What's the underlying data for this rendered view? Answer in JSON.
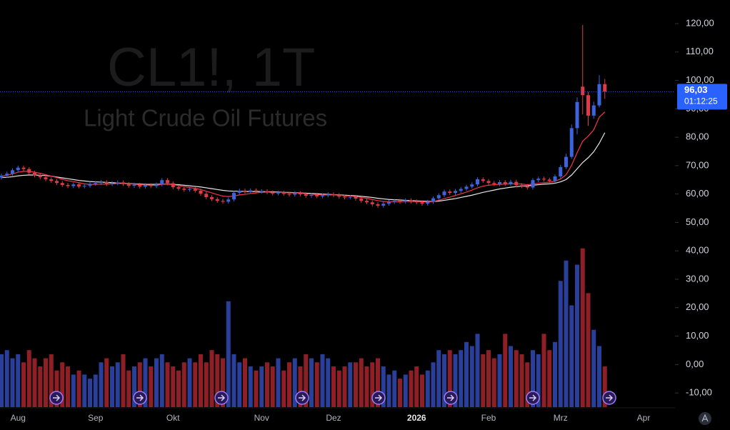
{
  "chart_data": {
    "type": "candlestick",
    "title": "CL1!, 1T",
    "subtitle": "Light Crude Oil Futures",
    "last_label": "96,03",
    "countdown": "01:12:25",
    "up_color": "#3d63dd",
    "down_color": "#e03a45",
    "volume_up_color": "#2a3f99",
    "volume_down_color": "#8f1f27",
    "ylim": [
      -15,
      128.3
    ],
    "yticks": [
      {
        "value": -10,
        "label": "-10,00"
      },
      {
        "value": 0,
        "label": "0,00"
      },
      {
        "value": 10,
        "label": "10,00"
      },
      {
        "value": 20,
        "label": "20,00"
      },
      {
        "value": 30,
        "label": "30,00"
      },
      {
        "value": 40,
        "label": "40,00"
      },
      {
        "value": 50,
        "label": "50,00"
      },
      {
        "value": 60,
        "label": "60,00"
      },
      {
        "value": 70,
        "label": "70,00"
      },
      {
        "value": 80,
        "label": "80,00"
      },
      {
        "value": 90,
        "label": "90,00"
      },
      {
        "value": 100,
        "label": "100,00"
      },
      {
        "value": 110,
        "label": "110,00"
      },
      {
        "value": 120,
        "label": "120,00"
      }
    ],
    "y2lim": [
      0,
      100
    ],
    "categories": [
      null,
      null,
      null,
      "Aug",
      null,
      null,
      null,
      null,
      null,
      null,
      null,
      null,
      null,
      null,
      null,
      null,
      null,
      "Sep",
      null,
      null,
      null,
      null,
      null,
      null,
      null,
      null,
      null,
      null,
      null,
      null,
      null,
      "Okt",
      null,
      null,
      null,
      null,
      null,
      null,
      null,
      null,
      null,
      null,
      null,
      null,
      null,
      null,
      null,
      "Nov",
      null,
      null,
      null,
      null,
      null,
      null,
      null,
      null,
      null,
      null,
      null,
      null,
      "Dez",
      null,
      null,
      null,
      null,
      null,
      null,
      null,
      null,
      null,
      null,
      null,
      null,
      null,
      null,
      "2026",
      null,
      null,
      null,
      null,
      null,
      null,
      null,
      null,
      null,
      null,
      null,
      null,
      "Feb",
      null,
      null,
      null,
      null,
      null,
      null,
      null,
      null,
      null,
      null,
      null,
      null,
      "Mrz",
      null,
      null,
      null,
      null,
      null,
      null,
      null,
      null,
      null,
      null,
      null,
      null,
      null,
      null,
      "Apr",
      null,
      null,
      null,
      null,
      null
    ],
    "open": [
      65.8,
      66.5,
      67.2,
      68.4,
      69.3,
      68.8,
      67.5,
      66.6,
      65.9,
      65.2,
      64.6,
      63.9,
      63.2,
      62.8,
      63.4,
      62.7,
      62.9,
      63.6,
      63.9,
      64.2,
      63.5,
      63.8,
      64.1,
      63.5,
      62.9,
      63.3,
      62.6,
      63.1,
      62.8,
      63.4,
      64.9,
      63.8,
      62.4,
      61.9,
      61.5,
      61.8,
      61.2,
      60.1,
      58.9,
      58.2,
      57.6,
      57.3,
      58.1,
      60.4,
      61.2,
      60.8,
      61.3,
      60.9,
      61.0,
      60.6,
      60.2,
      60.5,
      60.1,
      59.8,
      60.3,
      59.9,
      59.4,
      59.7,
      59.2,
      59.5,
      59.9,
      59.6,
      59.1,
      58.8,
      59.0,
      58.4,
      57.6,
      57.1,
      56.4,
      55.9,
      56.6,
      57.2,
      57.6,
      57.3,
      57.8,
      57.4,
      57.1,
      56.6,
      57.3,
      58.5,
      59.6,
      60.9,
      60.4,
      61.1,
      61.8,
      62.6,
      63.4,
      65.2,
      64.6,
      63.9,
      63.5,
      64.2,
      63.6,
      64.3,
      63.1,
      62.8,
      62.3,
      64.9,
      65.4,
      65.1,
      64.6,
      66.2,
      69.5,
      73.1,
      83.2,
      97.8,
      94.8,
      87.6,
      91.2,
      98.7,
      null,
      null,
      null,
      null,
      null,
      null,
      null,
      null,
      null,
      null,
      null,
      null
    ],
    "high": [
      67.2,
      67.9,
      69.1,
      70.0,
      70.0,
      69.5,
      68.2,
      67.3,
      66.6,
      65.9,
      65.3,
      64.6,
      63.9,
      64.1,
      64.1,
      63.6,
      64.3,
      64.6,
      64.9,
      64.9,
      64.5,
      64.8,
      64.8,
      64.2,
      64.0,
      64.0,
      63.8,
      63.8,
      64.1,
      65.6,
      65.6,
      64.5,
      63.1,
      62.6,
      62.5,
      62.5,
      61.9,
      60.8,
      59.6,
      58.9,
      58.3,
      58.8,
      61.1,
      61.9,
      61.9,
      62.0,
      62.0,
      61.7,
      61.7,
      61.3,
      61.2,
      61.2,
      60.8,
      61.0,
      61.0,
      60.6,
      60.4,
      60.4,
      60.2,
      60.6,
      60.6,
      60.3,
      59.8,
      59.7,
      59.7,
      59.1,
      58.3,
      57.8,
      57.1,
      57.3,
      57.9,
      58.3,
      58.3,
      58.5,
      58.5,
      58.1,
      57.8,
      58.0,
      59.2,
      60.3,
      61.6,
      61.6,
      61.8,
      62.5,
      63.3,
      64.1,
      65.9,
      65.9,
      65.3,
      64.6,
      64.9,
      64.9,
      65.0,
      65.0,
      63.8,
      63.5,
      65.6,
      66.1,
      66.1,
      65.8,
      66.9,
      70.3,
      74.2,
      84.5,
      94.0,
      119.5,
      96.0,
      92.5,
      101.8,
      100.5,
      null,
      null,
      null,
      null,
      null,
      null,
      null,
      null,
      null,
      null,
      null,
      null
    ],
    "low": [
      65.1,
      65.8,
      66.5,
      67.7,
      68.1,
      66.8,
      65.9,
      65.2,
      64.5,
      63.9,
      63.2,
      62.5,
      62.1,
      62.1,
      62.0,
      62.0,
      62.2,
      62.9,
      63.2,
      62.8,
      62.8,
      63.1,
      62.8,
      62.2,
      62.2,
      61.9,
      61.9,
      62.1,
      62.1,
      62.7,
      63.1,
      61.7,
      61.2,
      60.8,
      60.8,
      60.5,
      59.4,
      58.2,
      57.5,
      56.9,
      56.6,
      56.6,
      57.4,
      59.7,
      60.1,
      60.1,
      60.2,
      60.2,
      59.9,
      59.5,
      59.5,
      59.4,
      59.1,
      59.1,
      59.2,
      58.7,
      58.7,
      58.5,
      58.5,
      58.8,
      58.9,
      58.4,
      58.1,
      58.1,
      57.7,
      56.9,
      56.4,
      55.7,
      55.2,
      55.2,
      55.9,
      56.5,
      56.6,
      56.6,
      56.7,
      56.4,
      55.9,
      55.9,
      56.6,
      57.8,
      58.9,
      59.7,
      59.7,
      60.4,
      61.1,
      61.9,
      62.7,
      63.9,
      63.2,
      62.8,
      62.8,
      62.9,
      62.9,
      62.4,
      62.1,
      61.6,
      61.6,
      64.2,
      64.4,
      63.9,
      63.9,
      65.5,
      68.8,
      72.4,
      81.0,
      88.0,
      84.0,
      86.5,
      90.5,
      93.5,
      null,
      null,
      null,
      null,
      null,
      null,
      null,
      null,
      null,
      null,
      null,
      null
    ],
    "close": [
      66.5,
      67.2,
      68.4,
      69.3,
      68.8,
      67.5,
      66.6,
      65.9,
      65.2,
      64.6,
      63.9,
      63.2,
      62.8,
      63.4,
      62.7,
      62.9,
      63.6,
      63.9,
      64.2,
      63.5,
      63.8,
      64.1,
      63.5,
      62.9,
      63.3,
      62.6,
      63.1,
      62.8,
      63.4,
      64.9,
      63.8,
      62.4,
      61.9,
      61.5,
      61.8,
      61.2,
      60.1,
      58.9,
      58.2,
      57.6,
      57.3,
      58.1,
      60.4,
      61.2,
      60.8,
      61.3,
      60.9,
      61.0,
      60.6,
      60.2,
      60.5,
      60.1,
      59.8,
      60.3,
      59.9,
      59.4,
      59.7,
      59.2,
      59.5,
      59.9,
      59.6,
      59.1,
      58.8,
      59.0,
      58.4,
      57.6,
      57.1,
      56.4,
      55.9,
      56.6,
      57.2,
      57.6,
      57.3,
      57.8,
      57.4,
      57.1,
      56.6,
      57.3,
      58.5,
      59.6,
      60.9,
      60.4,
      61.1,
      61.8,
      62.6,
      63.4,
      65.2,
      64.6,
      63.9,
      63.5,
      64.2,
      63.6,
      64.3,
      63.1,
      62.8,
      62.3,
      64.9,
      65.4,
      65.1,
      64.6,
      66.2,
      69.5,
      73.1,
      83.2,
      92.4,
      94.8,
      87.6,
      91.2,
      98.7,
      96.03,
      null,
      null,
      null,
      null,
      null,
      null,
      null,
      null,
      null,
      null,
      null,
      null
    ],
    "volume": [
      13,
      14,
      12,
      13,
      11,
      14,
      12,
      10,
      12,
      13,
      9,
      11,
      10,
      8,
      9,
      8,
      7,
      8,
      11,
      12,
      10,
      11,
      13,
      9,
      10,
      11,
      12,
      10,
      12,
      13,
      11,
      10,
      9,
      11,
      12,
      11,
      13,
      11,
      14,
      13,
      12,
      26,
      13,
      11,
      12,
      10,
      9,
      10,
      11,
      10,
      12,
      9,
      11,
      12,
      10,
      13,
      12,
      11,
      13,
      12,
      10,
      9,
      10,
      11,
      11,
      12,
      10,
      11,
      12,
      10,
      8,
      9,
      7,
      8,
      9,
      10,
      8,
      9,
      11,
      14,
      13,
      14,
      13,
      14,
      16,
      15,
      18,
      13,
      14,
      12,
      13,
      18,
      15,
      14,
      13,
      11,
      14,
      13,
      18,
      14,
      16,
      31,
      36,
      25,
      35,
      39,
      28,
      19,
      15,
      10,
      null,
      null,
      null,
      null,
      null,
      null,
      null,
      null,
      null,
      null,
      null,
      null
    ],
    "series": [
      {
        "color": "#e8e8e8",
        "values": [
          65.8,
          65.9,
          66.1,
          66.4,
          66.6,
          66.7,
          66.7,
          66.6,
          66.5,
          66.3,
          66.0,
          65.7,
          65.4,
          65.1,
          64.8,
          64.6,
          64.4,
          64.3,
          64.2,
          64.1,
          64.0,
          63.9,
          63.8,
          63.7,
          63.6,
          63.5,
          63.4,
          63.4,
          63.4,
          63.5,
          63.5,
          63.4,
          63.3,
          63.1,
          62.9,
          62.7,
          62.5,
          62.2,
          61.9,
          61.6,
          61.3,
          61.1,
          61.0,
          61.0,
          60.9,
          60.9,
          60.9,
          60.9,
          60.8,
          60.8,
          60.7,
          60.6,
          60.6,
          60.5,
          60.4,
          60.3,
          60.2,
          60.1,
          60.0,
          59.9,
          59.8,
          59.7,
          59.6,
          59.5,
          59.4,
          59.2,
          59.0,
          58.8,
          58.5,
          58.3,
          58.1,
          58.0,
          57.9,
          57.8,
          57.7,
          57.6,
          57.5,
          57.4,
          57.4,
          57.5,
          57.8,
          58.1,
          58.4,
          58.8,
          59.2,
          59.6,
          60.1,
          60.6,
          61.0,
          61.4,
          61.8,
          62.1,
          62.4,
          62.6,
          62.8,
          62.9,
          63.1,
          63.3,
          63.5,
          63.6,
          63.8,
          64.3,
          65.1,
          66.7,
          68.9,
          71.1,
          72.8,
          74.9,
          77.9,
          81.6,
          null,
          null,
          null,
          null,
          null,
          null,
          null,
          null,
          null,
          null,
          null,
          null
        ]
      },
      {
        "color": "#f23645",
        "values": [
          66.3,
          66.6,
          67.1,
          67.7,
          68.0,
          68.0,
          67.7,
          67.3,
          66.8,
          66.3,
          65.8,
          65.2,
          64.7,
          64.4,
          64.0,
          63.6,
          63.4,
          63.4,
          63.5,
          63.5,
          63.6,
          63.7,
          63.7,
          63.6,
          63.5,
          63.3,
          63.2,
          63.1,
          63.1,
          63.4,
          63.5,
          63.3,
          63.0,
          62.6,
          62.3,
          62.0,
          61.6,
          61.0,
          60.4,
          59.8,
          59.3,
          59.1,
          59.3,
          59.7,
          59.9,
          60.2,
          60.4,
          60.6,
          60.7,
          60.6,
          60.6,
          60.5,
          60.4,
          60.4,
          60.3,
          60.1,
          60.0,
          59.8,
          59.7,
          59.7,
          59.7,
          59.6,
          59.4,
          59.3,
          59.1,
          58.8,
          58.5,
          58.1,
          57.7,
          57.4,
          57.3,
          57.3,
          57.3,
          57.4,
          57.4,
          57.4,
          57.3,
          57.2,
          57.4,
          57.8,
          58.4,
          58.9,
          59.5,
          60.1,
          60.7,
          61.4,
          62.2,
          62.8,
          63.1,
          63.3,
          63.4,
          63.5,
          63.6,
          63.6,
          63.5,
          63.3,
          63.5,
          63.8,
          64.0,
          64.2,
          64.5,
          65.3,
          66.8,
          70.1,
          74.6,
          78.6,
          80.4,
          82.6,
          87.1,
          88.9,
          null,
          null,
          null,
          null,
          null,
          null,
          null,
          null,
          null,
          null,
          null,
          null
        ]
      }
    ]
  }
}
